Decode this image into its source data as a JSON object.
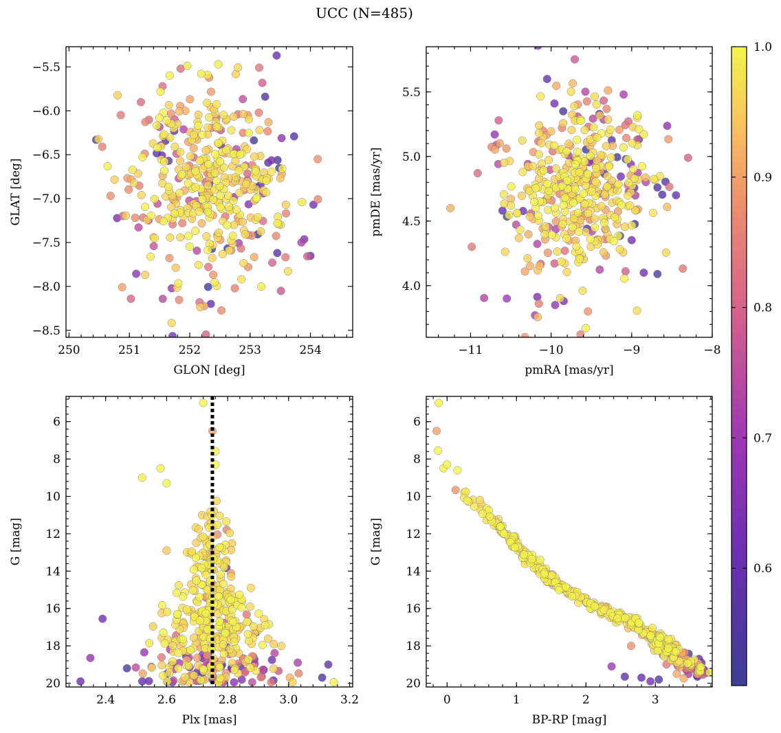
{
  "figure": {
    "title": "UCC (N=485)"
  },
  "chart_data": [
    {
      "type": "scatter",
      "id": "pos",
      "xlabel": "GLON [deg]",
      "ylabel": "GLAT [deg]",
      "xlim": [
        249.95,
        254.7
      ],
      "ylim": [
        -8.58,
        -5.27
      ],
      "y_inverted": false,
      "xticks": [
        250,
        251,
        252,
        253,
        254
      ],
      "xtick_labels": [
        "250",
        "251",
        "252",
        "253",
        "254"
      ],
      "yticks": [
        -5.5,
        -6.0,
        -6.5,
        -7.0,
        -7.5,
        -8.0,
        -8.5
      ],
      "ytick_labels": [
        "−5.5",
        "−6.0",
        "−6.5",
        "−7.0",
        "−7.5",
        "−8.0",
        "−8.5"
      ],
      "center": [
        252.3,
        -6.8
      ],
      "spread": [
        0.62,
        0.48
      ],
      "outliers": [
        [
          250.45,
          -6.33,
          0.55
        ],
        [
          253.25,
          -5.84,
          0.55
        ],
        [
          252.35,
          -8.2,
          0.6
        ],
        [
          253.45,
          -7.62,
          0.58
        ],
        [
          251.55,
          -5.72,
          0.82
        ],
        [
          252.8,
          -6.04,
          0.82
        ],
        [
          254.12,
          -6.55,
          0.88
        ],
        [
          251.65,
          -6.57,
          0.6
        ],
        [
          253.85,
          -7.5,
          0.72
        ],
        [
          254.05,
          -7.07,
          0.62
        ]
      ],
      "points": []
    },
    {
      "type": "scatter",
      "id": "pm",
      "xlabel": "pmRA [mas/yr]",
      "ylabel": "pmDE [mas/yr]",
      "xlim": [
        -11.55,
        -8.0
      ],
      "ylim": [
        3.6,
        5.85
      ],
      "y_inverted": false,
      "xticks": [
        -11,
        -10,
        -9,
        -8
      ],
      "xtick_labels": [
        "−11",
        "−10",
        "−9",
        "−8"
      ],
      "yticks": [
        4.0,
        4.5,
        5.0,
        5.5
      ],
      "ytick_labels": [
        "4.0",
        "4.5",
        "5.0",
        "5.5"
      ],
      "center": [
        -9.65,
        4.75
      ],
      "spread": [
        0.42,
        0.32
      ],
      "outliers": [
        [
          -10.05,
          5.6,
          0.6
        ],
        [
          -10.2,
          3.77,
          0.72
        ],
        [
          -9.95,
          3.85,
          0.68
        ],
        [
          -10.55,
          3.9,
          0.7
        ],
        [
          -8.85,
          4.1,
          0.62
        ],
        [
          -8.68,
          4.09,
          0.55
        ],
        [
          -8.68,
          4.76,
          0.55
        ],
        [
          -8.45,
          4.7,
          0.6
        ],
        [
          -10.7,
          5.17,
          0.68
        ],
        [
          -9.1,
          5.48,
          0.72
        ],
        [
          -9.85,
          5.35,
          0.55
        ],
        [
          -9.4,
          5.33,
          0.58
        ],
        [
          -8.3,
          4.99,
          0.8
        ],
        [
          -11.25,
          4.6,
          0.92
        ]
      ],
      "points": []
    },
    {
      "type": "scatter",
      "id": "plx",
      "xlabel": "Plx [mas]",
      "ylabel": "G [mag]",
      "xlim": [
        2.27,
        3.21
      ],
      "ylim": [
        20.2,
        4.65
      ],
      "y_inverted": true,
      "xticks": [
        2.4,
        2.6,
        2.8,
        3.0,
        3.2
      ],
      "xtick_labels": [
        "2.4",
        "2.6",
        "2.8",
        "3.0",
        "3.2"
      ],
      "yticks": [
        6,
        8,
        10,
        12,
        14,
        16,
        18,
        20
      ],
      "ytick_labels": [
        "6",
        "8",
        "10",
        "12",
        "14",
        "16",
        "18",
        "20"
      ],
      "vline": {
        "x": 2.75,
        "style": "dotted"
      },
      "outliers": [
        [
          2.35,
          18.65,
          0.68
        ],
        [
          2.39,
          16.55,
          0.62
        ],
        [
          2.47,
          19.2,
          0.55
        ],
        [
          2.52,
          19.9,
          0.6
        ],
        [
          2.95,
          19.85,
          0.58
        ],
        [
          3.11,
          19.7,
          0.55
        ],
        [
          3.13,
          19.0,
          0.58
        ],
        [
          3.03,
          18.9,
          0.72
        ],
        [
          2.6,
          12.9,
          0.95
        ]
      ],
      "points": []
    },
    {
      "type": "scatter",
      "id": "cmd",
      "xlabel": "BP-RP [mag]",
      "ylabel": "G [mag]",
      "xlim": [
        -0.3,
        3.82
      ],
      "ylim": [
        20.2,
        4.65
      ],
      "y_inverted": true,
      "xticks": [
        0,
        1,
        2,
        3
      ],
      "xtick_labels": [
        "0",
        "1",
        "2",
        "3"
      ],
      "yticks": [
        6,
        8,
        10,
        12,
        14,
        16,
        18,
        20
      ],
      "ytick_labels": [
        "6",
        "8",
        "10",
        "12",
        "14",
        "16",
        "18",
        "20"
      ],
      "sequence": [
        [
          -0.12,
          5.0
        ],
        [
          -0.15,
          7.6
        ],
        [
          0.15,
          9.6
        ],
        [
          0.5,
          10.7
        ],
        [
          0.8,
          11.8
        ],
        [
          1.1,
          13.0
        ],
        [
          1.5,
          14.5
        ],
        [
          2.0,
          15.6
        ],
        [
          2.5,
          16.5
        ],
        [
          2.85,
          17.2
        ],
        [
          3.1,
          17.9
        ],
        [
          3.35,
          18.7
        ],
        [
          3.6,
          19.3
        ]
      ],
      "outliers": [
        [
          -0.15,
          6.5,
          0.9
        ],
        [
          2.37,
          19.1,
          0.7
        ],
        [
          2.56,
          19.65,
          0.58
        ],
        [
          2.8,
          19.7,
          0.6
        ],
        [
          2.93,
          19.9,
          0.62
        ],
        [
          3.05,
          19.8,
          0.55
        ],
        [
          3.6,
          19.6,
          0.55
        ],
        [
          3.63,
          18.7,
          0.62
        ],
        [
          3.5,
          19.1,
          0.65
        ],
        [
          2.65,
          18.0,
          0.88
        ]
      ],
      "points": []
    }
  ],
  "colorbar": {
    "cmap": "plasma",
    "range": [
      0.51,
      1.0
    ],
    "ticks": [
      0.6,
      0.7,
      0.8,
      0.9,
      1.0
    ],
    "tick_labels": [
      "0.6",
      "0.7",
      "0.8",
      "0.9",
      "1.0"
    ]
  }
}
